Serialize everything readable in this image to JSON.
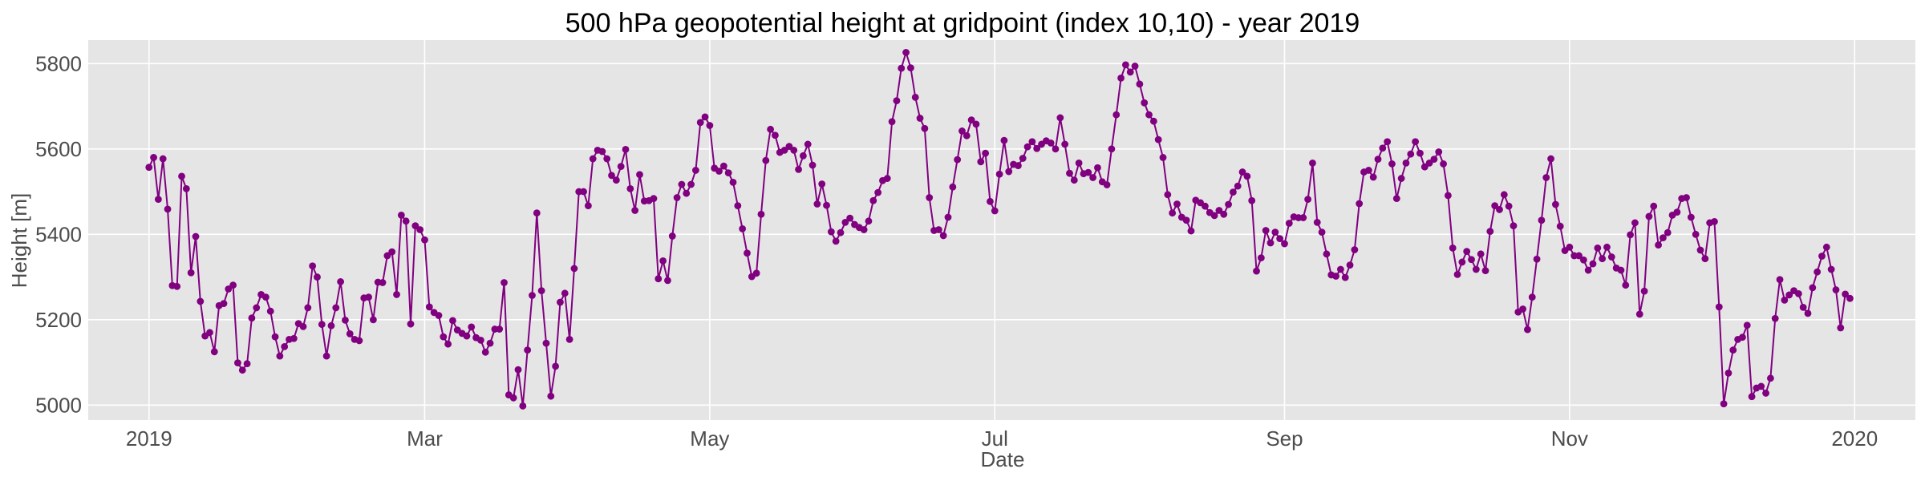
{
  "chart_data": {
    "type": "line",
    "title": "500 hPa geopotential height at gridpoint (index 10,10) - year 2019",
    "xlabel": "Date",
    "ylabel": "Height [m]",
    "x_range": [
      "2018-12-19",
      "2020-01-14"
    ],
    "ylim": [
      4965,
      5855
    ],
    "grid": true,
    "background_color": "#e5e5e5",
    "line_color": "#800080",
    "marker": "circle",
    "x_ticks": [
      {
        "date": "2019-01-01",
        "label": "2019"
      },
      {
        "date": "2019-03-01",
        "label": "Mar"
      },
      {
        "date": "2019-05-01",
        "label": "May"
      },
      {
        "date": "2019-07-01",
        "label": "Jul"
      },
      {
        "date": "2019-09-01",
        "label": "Sep"
      },
      {
        "date": "2019-11-01",
        "label": "Nov"
      },
      {
        "date": "2020-01-01",
        "label": "2020"
      }
    ],
    "y_ticks": [
      5000,
      5200,
      5400,
      5600,
      5800
    ],
    "series": [
      {
        "x_start": "2019-01-01",
        "x_step_days": 1,
        "values": [
          5557,
          5580,
          5482,
          5577,
          5459,
          5280,
          5278,
          5536,
          5507,
          5310,
          5395,
          5243,
          5162,
          5170,
          5125,
          5233,
          5238,
          5272,
          5281,
          5099,
          5082,
          5097,
          5204,
          5228,
          5259,
          5253,
          5220,
          5160,
          5115,
          5137,
          5154,
          5156,
          5191,
          5184,
          5228,
          5326,
          5300,
          5189,
          5115,
          5186,
          5228,
          5289,
          5199,
          5167,
          5154,
          5151,
          5251,
          5253,
          5200,
          5288,
          5287,
          5350,
          5359,
          5259,
          5445,
          5431,
          5190,
          5420,
          5411,
          5387,
          5230,
          5217,
          5210,
          5160,
          5143,
          5198,
          5176,
          5168,
          5162,
          5183,
          5158,
          5152,
          5124,
          5145,
          5178,
          5178,
          5287,
          5024,
          5017,
          5083,
          4998,
          5129,
          5257,
          5450,
          5268,
          5145,
          5021,
          5091,
          5241,
          5262,
          5154,
          5320,
          5500,
          5500,
          5467,
          5577,
          5597,
          5594,
          5577,
          5538,
          5527,
          5559,
          5599,
          5507,
          5456,
          5540,
          5478,
          5479,
          5484,
          5296,
          5338,
          5292,
          5396,
          5486,
          5517,
          5496,
          5517,
          5550,
          5662,
          5675,
          5655,
          5555,
          5548,
          5560,
          5544,
          5522,
          5467,
          5413,
          5356,
          5301,
          5309,
          5447,
          5573,
          5646,
          5632,
          5592,
          5597,
          5606,
          5597,
          5552,
          5584,
          5611,
          5562,
          5471,
          5518,
          5468,
          5406,
          5384,
          5404,
          5428,
          5438,
          5423,
          5416,
          5411,
          5431,
          5479,
          5498,
          5526,
          5531,
          5664,
          5713,
          5789,
          5826,
          5790,
          5721,
          5672,
          5648,
          5486,
          5409,
          5411,
          5397,
          5440,
          5511,
          5575,
          5642,
          5631,
          5668,
          5658,
          5570,
          5590,
          5477,
          5455,
          5541,
          5620,
          5547,
          5564,
          5561,
          5578,
          5605,
          5617,
          5601,
          5611,
          5619,
          5614,
          5600,
          5673,
          5611,
          5543,
          5527,
          5567,
          5542,
          5545,
          5533,
          5556,
          5523,
          5516,
          5600,
          5680,
          5766,
          5797,
          5780,
          5794,
          5752,
          5708,
          5680,
          5665,
          5622,
          5580,
          5493,
          5450,
          5471,
          5440,
          5433,
          5408,
          5480,
          5474,
          5466,
          5451,
          5444,
          5456,
          5447,
          5470,
          5499,
          5513,
          5546,
          5536,
          5479,
          5314,
          5345,
          5409,
          5380,
          5405,
          5390,
          5378,
          5426,
          5441,
          5439,
          5439,
          5482,
          5567,
          5428,
          5405,
          5354,
          5305,
          5302,
          5318,
          5299,
          5328,
          5364,
          5472,
          5546,
          5550,
          5534,
          5576,
          5602,
          5617,
          5565,
          5484,
          5531,
          5567,
          5588,
          5617,
          5590,
          5558,
          5567,
          5576,
          5593,
          5565,
          5491,
          5368,
          5306,
          5335,
          5360,
          5341,
          5318,
          5354,
          5315,
          5407,
          5467,
          5458,
          5493,
          5466,
          5420,
          5218,
          5225,
          5177,
          5253,
          5342,
          5433,
          5533,
          5577,
          5470,
          5419,
          5362,
          5370,
          5350,
          5350,
          5340,
          5316,
          5331,
          5368,
          5343,
          5370,
          5347,
          5321,
          5316,
          5281,
          5399,
          5427,
          5213,
          5267,
          5442,
          5466,
          5375,
          5392,
          5404,
          5445,
          5452,
          5484,
          5486,
          5440,
          5400,
          5363,
          5343,
          5427,
          5430,
          5230,
          5003,
          5075,
          5129,
          5154,
          5159,
          5187,
          5020,
          5040,
          5044,
          5028,
          5063,
          5203,
          5294,
          5246,
          5258,
          5268,
          5261,
          5229,
          5215,
          5275,
          5312,
          5349,
          5370,
          5318,
          5270,
          5181,
          5260,
          5250
        ]
      }
    ]
  }
}
